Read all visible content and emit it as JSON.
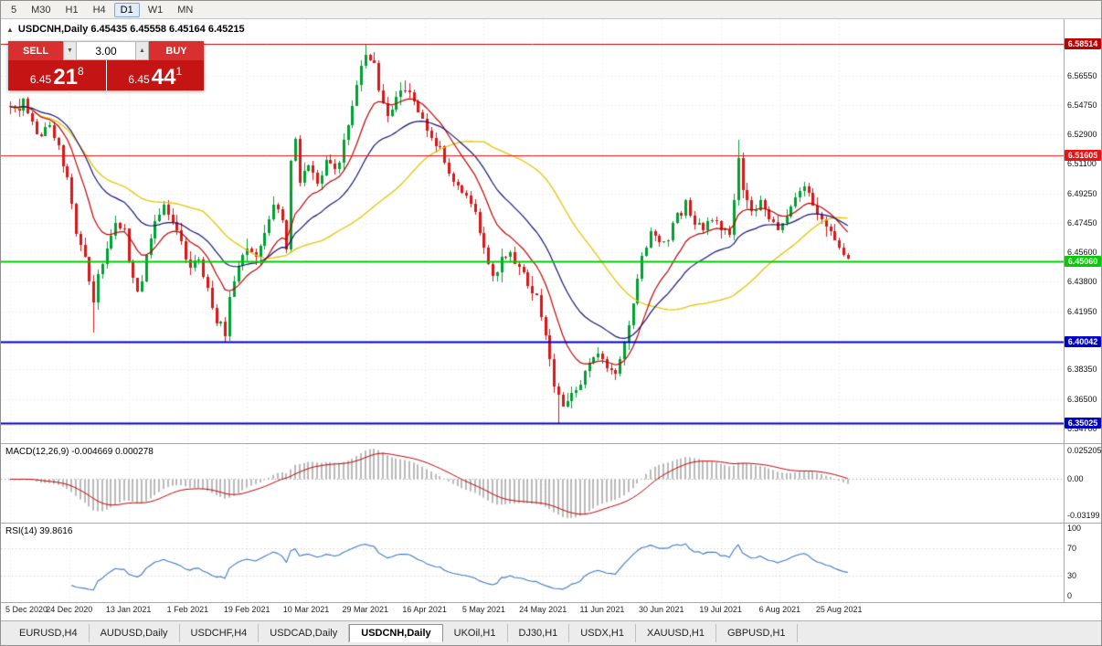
{
  "toolbar": {
    "timeframes": [
      "5",
      "M30",
      "H1",
      "H4",
      "D1",
      "W1",
      "MN"
    ],
    "active": "D1"
  },
  "chart_header": {
    "collapse_icon": "▲",
    "title": "USDCNH,Daily 6.45435 6.45558 6.45164 6.45215"
  },
  "trade_panel": {
    "sell_label": "SELL",
    "buy_label": "BUY",
    "volume": "3.00",
    "spinner_down": "▼",
    "spinner_up": "▲",
    "bid_prefix": "6.45",
    "bid_big": "21",
    "bid_sup": "8",
    "ask_prefix": "6.45",
    "ask_big": "44",
    "ask_sup": "1"
  },
  "panels": {
    "macd_label": "MACD(12,26,9) -0.004669 0.000278",
    "rsi_label": "RSI(14) 39.8616"
  },
  "tabs": {
    "items": [
      "EURUSD,H4",
      "AUDUSD,Daily",
      "USDCHF,H4",
      "USDCAD,Daily",
      "USDCNH,Daily",
      "UKOil,H1",
      "DJ30,H1",
      "USDX,H1",
      "XAUUSD,H1",
      "GBPUSD,H1"
    ],
    "active_index": 4
  },
  "chart_data": {
    "type": "candlestick",
    "symbol": "USDCNH",
    "timeframe": "Daily",
    "visible_ohlc": {
      "open": 6.45435,
      "high": 6.45558,
      "low": 6.45164,
      "close": 6.45215
    },
    "bars": 192,
    "seed": 20210831,
    "y_ticks": [
      "6.56550",
      "6.54750",
      "6.52900",
      "6.51100",
      "6.49250",
      "6.47450",
      "6.45600",
      "6.43800",
      "6.41950",
      "6.40150",
      "6.38350",
      "6.36500",
      "6.34700"
    ],
    "x_labels": [
      "5 Dec 2020",
      "24 Dec 2020",
      "13 Jan 2021",
      "1 Feb 2021",
      "19 Feb 2021",
      "10 Mar 2021",
      "29 Mar 2021",
      "16 Apr 2021",
      "5 May 2021",
      "24 May 2021",
      "11 Jun 2021",
      "30 Jun 2021",
      "19 Jul 2021",
      "6 Aug 2021",
      "25 Aug 2021"
    ],
    "x_label_bars": [
      0,
      13.5,
      27,
      40.5,
      54,
      67.5,
      81,
      94.5,
      108,
      121.5,
      135,
      148.5,
      162,
      175.5,
      189
    ],
    "hlines": [
      {
        "price": 6.58514,
        "label": "6.58514",
        "color": "#c00000",
        "width": 1
      },
      {
        "price": 6.51605,
        "label": "6.51605",
        "color": "#ee1111",
        "width": 1
      },
      {
        "price": 6.4506,
        "label": "6.45060",
        "color": "#00cc00",
        "width": 2
      },
      {
        "price": 6.40042,
        "label": "6.40042",
        "color": "#0000cc",
        "width": 2
      },
      {
        "price": 6.35025,
        "label": "6.35025",
        "color": "#0000cc",
        "width": 2
      }
    ],
    "price_anchors": [
      [
        0,
        6.547
      ],
      [
        2,
        6.54
      ],
      [
        3,
        6.551
      ],
      [
        5,
        6.535
      ],
      [
        7,
        6.528
      ],
      [
        9,
        6.536
      ],
      [
        11,
        6.522
      ],
      [
        13,
        6.5
      ],
      [
        15,
        6.468
      ],
      [
        17,
        6.452
      ],
      [
        19,
        6.426
      ],
      [
        20,
        6.44
      ],
      [
        22,
        6.46
      ],
      [
        24,
        6.478
      ],
      [
        26,
        6.47
      ],
      [
        27,
        6.45
      ],
      [
        29,
        6.432
      ],
      [
        31,
        6.452
      ],
      [
        33,
        6.472
      ],
      [
        35,
        6.486
      ],
      [
        37,
        6.474
      ],
      [
        39,
        6.46
      ],
      [
        41,
        6.446
      ],
      [
        43,
        6.452
      ],
      [
        45,
        6.432
      ],
      [
        47,
        6.416
      ],
      [
        49,
        6.406
      ],
      [
        50,
        6.428
      ],
      [
        52,
        6.45
      ],
      [
        54,
        6.46
      ],
      [
        56,
        6.452
      ],
      [
        58,
        6.466
      ],
      [
        60,
        6.484
      ],
      [
        62,
        6.478
      ],
      [
        63,
        6.46
      ],
      [
        64,
        6.512
      ],
      [
        65,
        6.528
      ],
      [
        66,
        6.5
      ],
      [
        68,
        6.51
      ],
      [
        70,
        6.496
      ],
      [
        72,
        6.512
      ],
      [
        74,
        6.505
      ],
      [
        76,
        6.522
      ],
      [
        78,
        6.548
      ],
      [
        80,
        6.57
      ],
      [
        81,
        6.578
      ],
      [
        83,
        6.57
      ],
      [
        84,
        6.556
      ],
      [
        86,
        6.54
      ],
      [
        88,
        6.552
      ],
      [
        90,
        6.56
      ],
      [
        92,
        6.552
      ],
      [
        94,
        6.538
      ],
      [
        96,
        6.528
      ],
      [
        98,
        6.518
      ],
      [
        100,
        6.508
      ],
      [
        102,
        6.498
      ],
      [
        104,
        6.49
      ],
      [
        106,
        6.48
      ],
      [
        108,
        6.458
      ],
      [
        110,
        6.44
      ],
      [
        112,
        6.452
      ],
      [
        114,
        6.456
      ],
      [
        116,
        6.446
      ],
      [
        118,
        6.437
      ],
      [
        120,
        6.428
      ],
      [
        122,
        6.402
      ],
      [
        124,
        6.372
      ],
      [
        126,
        6.36
      ],
      [
        128,
        6.366
      ],
      [
        130,
        6.376
      ],
      [
        132,
        6.387
      ],
      [
        134,
        6.396
      ],
      [
        136,
        6.386
      ],
      [
        138,
        6.38
      ],
      [
        140,
        6.396
      ],
      [
        142,
        6.424
      ],
      [
        144,
        6.452
      ],
      [
        146,
        6.47
      ],
      [
        148,
        6.462
      ],
      [
        150,
        6.466
      ],
      [
        152,
        6.48
      ],
      [
        154,
        6.486
      ],
      [
        156,
        6.476
      ],
      [
        158,
        6.472
      ],
      [
        160,
        6.478
      ],
      [
        162,
        6.47
      ],
      [
        164,
        6.466
      ],
      [
        166,
        6.512
      ],
      [
        167,
        6.492
      ],
      [
        169,
        6.482
      ],
      [
        171,
        6.487
      ],
      [
        173,
        6.476
      ],
      [
        175,
        6.471
      ],
      [
        177,
        6.479
      ],
      [
        179,
        6.489
      ],
      [
        181,
        6.497
      ],
      [
        183,
        6.487
      ],
      [
        185,
        6.477
      ],
      [
        187,
        6.47
      ],
      [
        189,
        6.459
      ],
      [
        191,
        6.452
      ]
    ],
    "overrides": [
      {
        "bar": 19,
        "low": 6.4065
      },
      {
        "bar": 49,
        "low": 6.4004
      },
      {
        "bar": 81,
        "high": 6.5851
      },
      {
        "bar": 125,
        "low": 6.3503
      },
      {
        "bar": 166,
        "high": 6.526
      }
    ],
    "last_bar": {
      "open": 6.45435,
      "high": 6.45558,
      "low": 6.45164,
      "close": 6.45215
    },
    "candle_colors": {
      "up": "#00a032",
      "down": "#d81818"
    },
    "ma_colors": {
      "fast": "#c00000",
      "medium": "#141478",
      "slow": "#e6c300"
    },
    "indicators": {
      "macd": {
        "params": "12,26,9",
        "main": -0.004669,
        "signal": 0.000278,
        "axis_max": "0.025205",
        "axis_zero": "0.00",
        "axis_min": "-0.03199"
      },
      "rsi": {
        "params": "14",
        "value": 39.8616,
        "levels": [
          70,
          30
        ],
        "axis": [
          "100",
          "70",
          "30",
          "0"
        ]
      }
    }
  }
}
